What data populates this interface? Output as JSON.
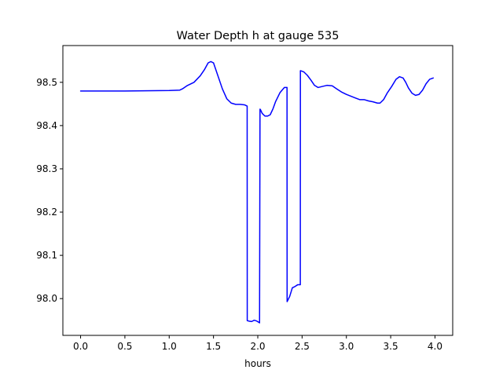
{
  "chart_data": {
    "type": "line",
    "title": "Water Depth h at gauge 535",
    "xlabel": "hours",
    "ylabel": "",
    "xlim": [
      -0.2,
      4.2
    ],
    "ylim": [
      97.915,
      98.585
    ],
    "xticks": [
      0.0,
      0.5,
      1.0,
      1.5,
      2.0,
      2.5,
      3.0,
      3.5,
      4.0
    ],
    "xtick_labels": [
      "0.0",
      "0.5",
      "1.0",
      "1.5",
      "2.0",
      "2.5",
      "3.0",
      "3.5",
      "4.0"
    ],
    "yticks": [
      98.0,
      98.1,
      98.2,
      98.3,
      98.4,
      98.5
    ],
    "ytick_labels": [
      "98.0",
      "98.1",
      "98.2",
      "98.3",
      "98.4",
      "98.5"
    ],
    "grid": false,
    "legend": "none",
    "series": [
      {
        "color": "#0000ff",
        "x": [
          0.0,
          0.5,
          1.0,
          1.12,
          1.15,
          1.2,
          1.28,
          1.35,
          1.4,
          1.44,
          1.47,
          1.5,
          1.55,
          1.6,
          1.65,
          1.7,
          1.75,
          1.8,
          1.85,
          1.88,
          1.881,
          1.9,
          1.93,
          1.96,
          1.99,
          2.02,
          2.025,
          2.03,
          2.05,
          2.08,
          2.11,
          2.14,
          2.17,
          2.2,
          2.25,
          2.3,
          2.33,
          2.331,
          2.36,
          2.39,
          2.42,
          2.45,
          2.48,
          2.481,
          2.52,
          2.56,
          2.6,
          2.64,
          2.68,
          2.72,
          2.78,
          2.84,
          2.89,
          2.95,
          3.0,
          3.05,
          3.1,
          3.15,
          3.2,
          3.25,
          3.3,
          3.35,
          3.38,
          3.42,
          3.46,
          3.51,
          3.56,
          3.6,
          3.64,
          3.67,
          3.7,
          3.74,
          3.78,
          3.82,
          3.86,
          3.9,
          3.94,
          3.98
        ],
        "y": [
          98.48,
          98.48,
          98.481,
          98.482,
          98.485,
          98.492,
          98.5,
          98.515,
          98.53,
          98.545,
          98.548,
          98.545,
          98.515,
          98.485,
          98.462,
          98.452,
          98.449,
          98.449,
          98.448,
          98.445,
          97.949,
          97.948,
          97.947,
          97.95,
          97.948,
          97.944,
          98.438,
          98.437,
          98.428,
          98.422,
          98.422,
          98.425,
          98.438,
          98.455,
          98.476,
          98.488,
          98.488,
          97.993,
          98.005,
          98.025,
          98.028,
          98.032,
          98.032,
          98.527,
          98.524,
          98.516,
          98.505,
          98.493,
          98.488,
          98.49,
          98.493,
          98.492,
          98.485,
          98.477,
          98.472,
          98.468,
          98.464,
          98.46,
          98.46,
          98.457,
          98.455,
          98.452,
          98.452,
          98.46,
          98.475,
          98.49,
          98.507,
          98.513,
          98.51,
          98.5,
          98.487,
          98.475,
          98.47,
          98.472,
          98.482,
          98.497,
          98.507,
          98.51
        ]
      }
    ]
  }
}
